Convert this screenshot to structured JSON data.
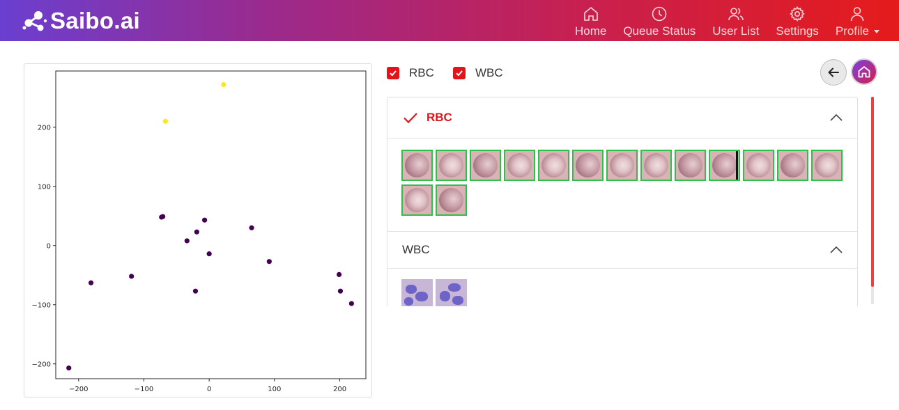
{
  "app": {
    "brand": "Saibo.ai"
  },
  "nav": [
    {
      "label": "Home",
      "icon": "home-icon"
    },
    {
      "label": "Queue Status",
      "icon": "clock-icon"
    },
    {
      "label": "User List",
      "icon": "users-icon"
    },
    {
      "label": "Settings",
      "icon": "gear-icon"
    },
    {
      "label": "Profile",
      "icon": "user-icon"
    }
  ],
  "filters": [
    {
      "label": "RBC",
      "checked": true
    },
    {
      "label": "WBC",
      "checked": true
    }
  ],
  "accordion": {
    "rbc": {
      "title": "RBC",
      "expanded": true,
      "thumbnail_count": 15,
      "icon": "check-icon"
    },
    "wbc": {
      "title": "WBC",
      "expanded": true,
      "thumbnail_count": 2
    }
  },
  "colors": {
    "accent": "#e0151c",
    "header_start": "#6a3fd0",
    "header_end": "#e51b1b",
    "thumb_border": "#2fbf4b",
    "point_primary": "#440154",
    "point_secondary": "#fde725"
  },
  "chart_data": {
    "type": "scatter",
    "title": "",
    "xlabel": "",
    "ylabel": "",
    "xlim": [
      -235,
      240
    ],
    "ylim": [
      -225,
      295
    ],
    "xticks": [
      -200,
      -100,
      0,
      100,
      200
    ],
    "yticks": [
      -200,
      -100,
      0,
      100,
      200
    ],
    "grid": false,
    "series": [
      {
        "color": "#440154",
        "points": [
          [
            -215,
            -207
          ],
          [
            -181,
            -63
          ],
          [
            -119,
            -52
          ],
          [
            -73,
            48
          ],
          [
            -71,
            49
          ],
          [
            -34,
            8
          ],
          [
            -21,
            -77
          ],
          [
            -19,
            23
          ],
          [
            -7,
            43
          ],
          [
            0,
            -14
          ],
          [
            65,
            30
          ],
          [
            92,
            -27
          ],
          [
            199,
            -49
          ],
          [
            201,
            -77
          ],
          [
            218,
            -98
          ]
        ]
      },
      {
        "color": "#fde725",
        "points": [
          [
            -67,
            210
          ],
          [
            22,
            272
          ]
        ]
      }
    ]
  }
}
